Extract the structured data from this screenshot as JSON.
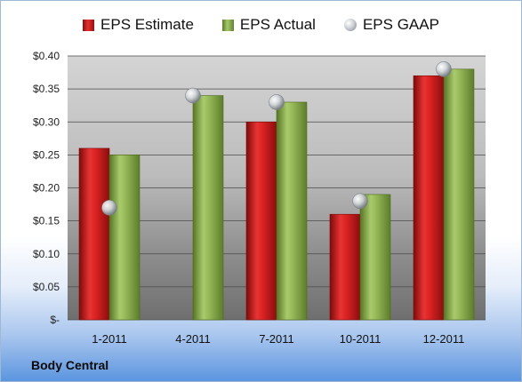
{
  "legend": {
    "estimate": "EPS Estimate",
    "actual": "EPS Actual",
    "gaap": "EPS GAAP"
  },
  "company": "Body Central",
  "colors": {
    "estimate": "#c81e1e",
    "actual": "#8db04a",
    "gaap": "#c8ccd2"
  },
  "chart_data": {
    "type": "bar",
    "categories": [
      "1-2011",
      "4-2011",
      "7-2011",
      "10-2011",
      "12-2011"
    ],
    "series": [
      {
        "name": "EPS Estimate",
        "values": [
          0.26,
          null,
          0.3,
          0.16,
          0.37
        ]
      },
      {
        "name": "EPS Actual",
        "values": [
          0.25,
          0.34,
          0.33,
          0.19,
          0.38
        ]
      },
      {
        "name": "EPS GAAP",
        "values": [
          0.17,
          0.34,
          0.33,
          0.18,
          0.38
        ]
      }
    ],
    "ylim": [
      0,
      0.4
    ],
    "yticks": [
      {
        "value": 0.4,
        "label": "$0.40"
      },
      {
        "value": 0.35,
        "label": "$0.35"
      },
      {
        "value": 0.3,
        "label": "$0.30"
      },
      {
        "value": 0.25,
        "label": "$0.25"
      },
      {
        "value": 0.2,
        "label": "$0.20"
      },
      {
        "value": 0.15,
        "label": "$0.15"
      },
      {
        "value": 0.1,
        "label": "$0.10"
      },
      {
        "value": 0.05,
        "label": "$0.05"
      },
      {
        "value": 0,
        "label": "$-"
      }
    ],
    "grid": true,
    "legend_position": "top"
  }
}
